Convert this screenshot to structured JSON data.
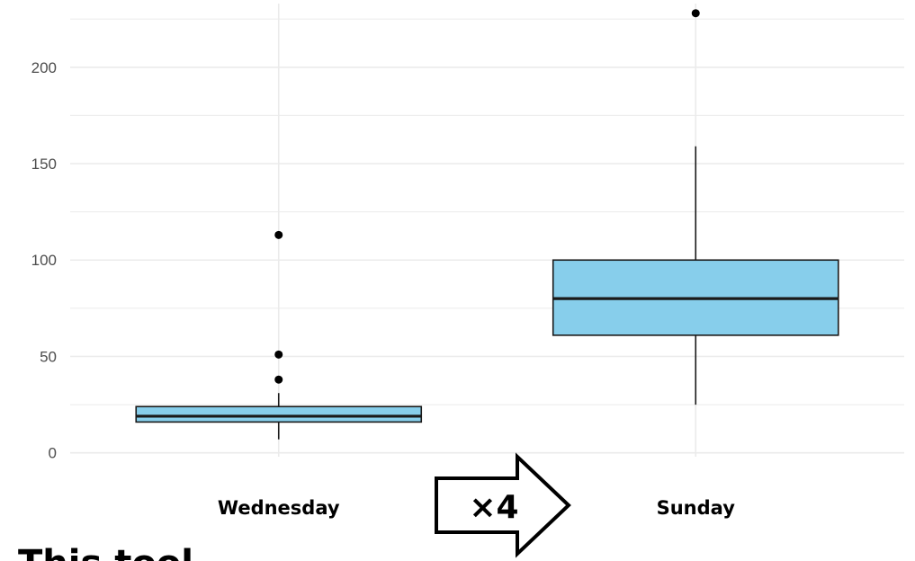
{
  "chart_data": {
    "type": "boxplot",
    "categories": [
      "Wednesday",
      "Sunday"
    ],
    "boxes": [
      {
        "category": "Wednesday",
        "whisker_low": 7,
        "q1": 16,
        "median": 19,
        "q3": 24,
        "whisker_high": 31,
        "outliers": [
          38,
          51,
          113
        ]
      },
      {
        "category": "Sunday",
        "whisker_low": 25,
        "q1": 61,
        "median": 80,
        "q3": 100,
        "whisker_high": 159,
        "outliers": [
          228
        ]
      }
    ],
    "ylim": [
      -2,
      233
    ],
    "yticks": [
      "0",
      "50",
      "100",
      "150",
      "200"
    ],
    "ytick_values": [
      0,
      50,
      100,
      150,
      200
    ],
    "grid": true,
    "title": "",
    "xlabel": "",
    "ylabel": ""
  },
  "annotation": {
    "arrow_label": "×4"
  },
  "footer": {
    "partial_text": "This tool"
  },
  "colors": {
    "box_fill": "#87ceeb",
    "box_stroke": "#1a1a1a",
    "grid": "#ebebeb",
    "outlier": "#000000",
    "tick_text": "#4d4d4d"
  }
}
